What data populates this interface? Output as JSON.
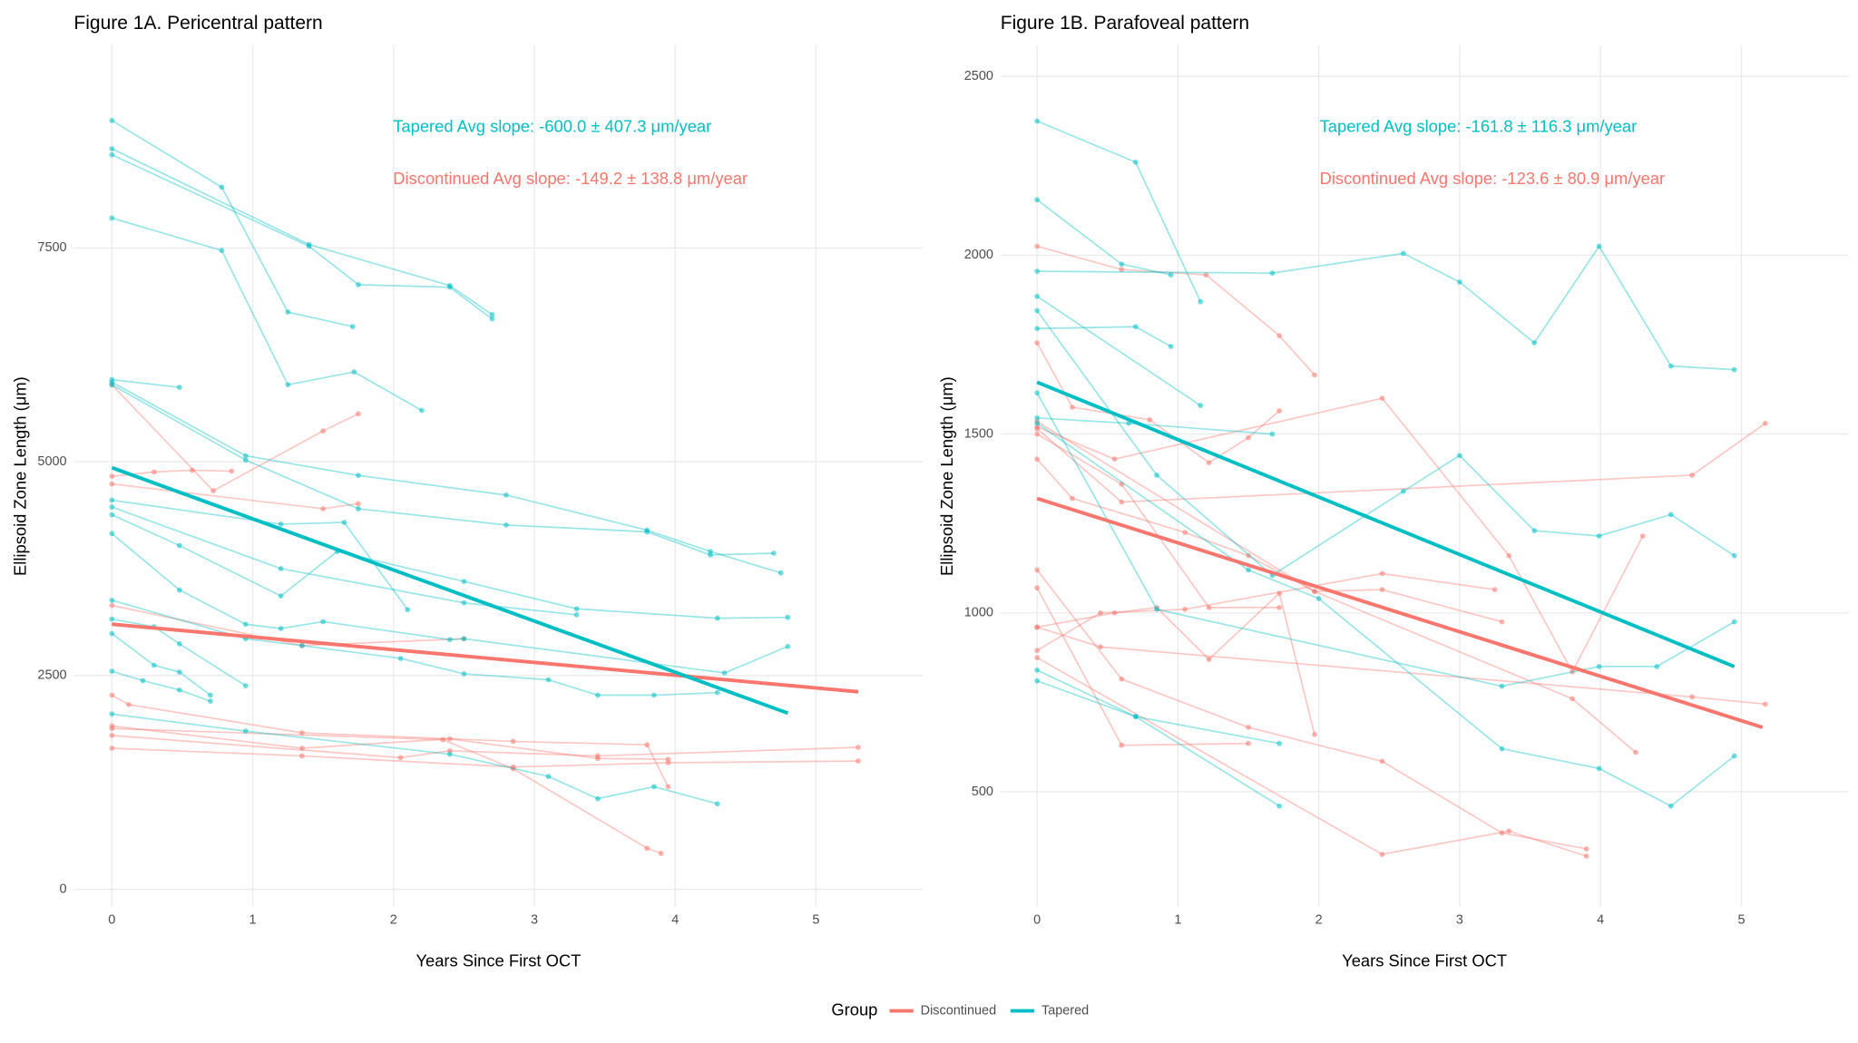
{
  "legend": {
    "title": "Group",
    "items": [
      {
        "name": "Discontinued",
        "color": "#F8766D"
      },
      {
        "name": "Tapered",
        "color": "#00BFC4"
      }
    ]
  },
  "chart_data": [
    {
      "type": "line",
      "title": "Figure 1A. Pericentral pattern",
      "xlabel": "Years Since First OCT",
      "ylabel": "Ellipsoid Zone Length (μm)",
      "xlim": [
        -0.27,
        5.76
      ],
      "ylim": [
        -210,
        9870
      ],
      "xticks": [
        0,
        1,
        2,
        3,
        4,
        5
      ],
      "yticks": [
        0,
        2500,
        5000,
        7500
      ],
      "series": [
        {
          "annotation": "Discontinued Avg slope: -149.2 ± 138.8 μm/year",
          "trend": {
            "x": [
              0,
              5.3
            ],
            "values": [
              3100,
              2310
            ]
          },
          "subjects": [
            {
              "x": [
                0,
                0.3,
                0.57,
                0.85
              ],
              "values": [
                4830,
                4880,
                4900,
                4890
              ]
            },
            {
              "x": [
                0,
                0.72,
                1.5,
                1.75
              ],
              "values": [
                5900,
                4660,
                5360,
                5560
              ]
            },
            {
              "x": [
                0,
                1.5,
                1.75
              ],
              "values": [
                4740,
                4450,
                4510
              ]
            },
            {
              "x": [
                0,
                1.35,
                2.5
              ],
              "values": [
                3320,
                2850,
                2930
              ]
            },
            {
              "x": [
                0,
                0.12,
                1.35,
                2.85,
                3.8,
                3.95
              ],
              "values": [
                2270,
                2160,
                1830,
                1730,
                1690,
                1200
              ]
            },
            {
              "x": [
                0,
                1.35,
                2.4,
                3.45,
                3.95
              ],
              "values": [
                1910,
                1650,
                1760,
                1530,
                1520
              ]
            },
            {
              "x": [
                0,
                2.35,
                2.85,
                3.8,
                3.9
              ],
              "values": [
                1880,
                1750,
                1410,
                480,
                420
              ]
            },
            {
              "x": [
                0,
                2.05,
                2.4,
                3.45,
                5.3
              ],
              "values": [
                1800,
                1540,
                1620,
                1560,
                1660
              ]
            },
            {
              "x": [
                0,
                1.35,
                2.85,
                3.95,
                5.3
              ],
              "values": [
                1650,
                1560,
                1430,
                1480,
                1500
              ]
            }
          ]
        },
        {
          "annotation": "Tapered Avg slope: -600.0 ± 407.3 μm/year",
          "trend": {
            "x": [
              0,
              4.8
            ],
            "values": [
              4930,
              2060
            ]
          },
          "subjects": [
            {
              "x": [
                0,
                0.78,
                1.25,
                1.71
              ],
              "values": [
                8990,
                8210,
                6750,
                6580
              ]
            },
            {
              "x": [
                0,
                1.4,
                2.4,
                2.7
              ],
              "values": [
                8660,
                7540,
                7060,
                6720
              ]
            },
            {
              "x": [
                0,
                1.4,
                1.75,
                2.4,
                2.7
              ],
              "values": [
                8590,
                7520,
                7070,
                7040,
                6670
              ]
            },
            {
              "x": [
                0,
                0.78,
                1.25,
                1.72,
                2.2
              ],
              "values": [
                7850,
                7470,
                5900,
                6050,
                5600
              ]
            },
            {
              "x": [
                0,
                0.48
              ],
              "values": [
                5960,
                5870
              ]
            },
            {
              "x": [
                0,
                0.95,
                1.75,
                2.8,
                3.8,
                4.25,
                4.75
              ],
              "values": [
                5930,
                5070,
                4840,
                4610,
                4200,
                3950,
                3700
              ]
            },
            {
              "x": [
                0,
                0.95,
                1.75,
                2.8,
                3.8,
                4.25,
                4.7
              ],
              "values": [
                5900,
                5020,
                4450,
                4260,
                4180,
                3910,
                3930
              ]
            },
            {
              "x": [
                0,
                1.2,
                1.65,
                2.1
              ],
              "values": [
                4550,
                4270,
                4290,
                3270
              ]
            },
            {
              "x": [
                0,
                0.48,
                1.2,
                1.6,
                2.5,
                3.3,
                4.3,
                4.8
              ],
              "values": [
                4380,
                4020,
                3430,
                3950,
                3600,
                3280,
                3170,
                3180
              ]
            },
            {
              "x": [
                0,
                1.2,
                2.5,
                3.3
              ],
              "values": [
                4470,
                3750,
                3350,
                3210
              ]
            },
            {
              "x": [
                0,
                0.48,
                0.95,
                1.2,
                1.5,
                2.4,
                2.5,
                4.35,
                4.8
              ],
              "values": [
                4160,
                3500,
                3100,
                3050,
                3130,
                2920,
                2930,
                2530,
                2840
              ]
            },
            {
              "x": [
                0,
                0.95,
                1.35,
                2.05,
                2.5,
                3.1,
                3.45,
                3.85,
                4.3
              ],
              "values": [
                3380,
                2930,
                2850,
                2700,
                2520,
                2450,
                2270,
                2270,
                2300
              ]
            },
            {
              "x": [
                0,
                0.3,
                0.48,
                0.95
              ],
              "values": [
                3160,
                3070,
                2870,
                2380
              ]
            },
            {
              "x": [
                0,
                0.3,
                0.48,
                0.7
              ],
              "values": [
                2990,
                2620,
                2540,
                2270
              ]
            },
            {
              "x": [
                0,
                0.22,
                0.48,
                0.7
              ],
              "values": [
                2550,
                2440,
                2330,
                2200
              ]
            },
            {
              "x": [
                0,
                0.95,
                2.4,
                3.1,
                3.45,
                3.85,
                4.3
              ],
              "values": [
                2050,
                1850,
                1580,
                1320,
                1060,
                1200,
                1000
              ]
            }
          ]
        }
      ]
    },
    {
      "type": "line",
      "title": "Figure 1B. Parafoveal pattern",
      "xlabel": "Years Since First OCT",
      "ylabel": "Ellipsoid Zone Length (μm)",
      "xlim": [
        -0.26,
        5.76
      ],
      "ylim": [
        177,
        2587
      ],
      "xticks": [
        0,
        1,
        2,
        3,
        4,
        5
      ],
      "yticks": [
        500,
        1000,
        1500,
        2000,
        2500
      ],
      "series": [
        {
          "annotation": "Discontinued Avg slope: -123.6 ± 80.9 μm/year",
          "trend": {
            "x": [
              0,
              5.15
            ],
            "values": [
              1320,
              680
            ]
          },
          "subjects": [
            {
              "x": [
                0,
                0.6,
                1.2,
                1.72,
                1.97
              ],
              "values": [
                2025,
                1960,
                1945,
                1775,
                1665
              ]
            },
            {
              "x": [
                0,
                0.25,
                0.8,
                1.22,
                1.5,
                1.72
              ],
              "values": [
                1755,
                1575,
                1540,
                1420,
                1490,
                1565
              ]
            },
            {
              "x": [
                0,
                0.55,
                2.45,
                3.35,
                3.8,
                4.3
              ],
              "values": [
                1520,
                1430,
                1600,
                1160,
                835,
                1215
              ]
            },
            {
              "x": [
                0,
                0.6,
                1.22,
                1.72
              ],
              "values": [
                1500,
                1360,
                1015,
                1015
              ]
            },
            {
              "x": [
                0,
                0.25,
                1.05,
                1.5,
                1.97,
                2.45,
                3.3
              ],
              "values": [
                1430,
                1320,
                1225,
                1160,
                1060,
                1065,
                975
              ]
            },
            {
              "x": [
                0,
                0.6,
                1.5,
                2.45,
                3.3,
                3.9
              ],
              "values": [
                1120,
                815,
                680,
                585,
                385,
                340
              ]
            },
            {
              "x": [
                0,
                0.6,
                1.5
              ],
              "values": [
                1070,
                630,
                635
              ]
            },
            {
              "x": [
                0,
                0.55,
                0.85,
                1.22,
                1.72,
                1.97
              ],
              "values": [
                960,
                1000,
                1015,
                870,
                1055,
                660
              ]
            },
            {
              "x": [
                0,
                0.45,
                1.05,
                2.45,
                3.25
              ],
              "values": [
                895,
                1000,
                1010,
                1110,
                1065
              ]
            },
            {
              "x": [
                0,
                2.45,
                3.35,
                3.9
              ],
              "values": [
                875,
                325,
                390,
                320
              ]
            },
            {
              "x": [
                0,
                0.6,
                4.65,
                5.17
              ],
              "values": [
                1515,
                1310,
                1385,
                1530
              ]
            },
            {
              "x": [
                0,
                1.97,
                3.8,
                4.25
              ],
              "values": [
                1535,
                1060,
                760,
                610
              ]
            },
            {
              "x": [
                0,
                0.45,
                4.65,
                5.17
              ],
              "values": [
                960,
                905,
                765,
                745
              ]
            }
          ]
        },
        {
          "annotation": "Tapered Avg slope: -161.8 ± 116.3 μm/year",
          "trend": {
            "x": [
              0,
              4.95
            ],
            "values": [
              1645,
              850
            ]
          },
          "subjects": [
            {
              "x": [
                0,
                0.7,
                1.16
              ],
              "values": [
                2375,
                2260,
                1870
              ]
            },
            {
              "x": [
                0,
                0.6,
                0.95
              ],
              "values": [
                2155,
                1975,
                1945
              ]
            },
            {
              "x": [
                0,
                1.67,
                2.6,
                3.0,
                3.53,
                3.99,
                4.5,
                4.95
              ],
              "values": [
                1955,
                1950,
                2005,
                1925,
                1755,
                2025,
                1690,
                1680
              ]
            },
            {
              "x": [
                0,
                0.7,
                0.95
              ],
              "values": [
                1795,
                1800,
                1745
              ]
            },
            {
              "x": [
                0,
                1.16
              ],
              "values": [
                1885,
                1580
              ]
            },
            {
              "x": [
                0,
                0.85,
                1.67,
                2.6,
                3.0,
                3.53,
                3.99,
                4.5,
                4.95
              ],
              "values": [
                1845,
                1385,
                1105,
                1340,
                1440,
                1230,
                1215,
                1275,
                1160
              ]
            },
            {
              "x": [
                0,
                0.65,
                1.67
              ],
              "values": [
                1545,
                1530,
                1500
              ]
            },
            {
              "x": [
                0,
                0.85,
                3.3,
                3.99,
                4.4,
                4.95
              ],
              "values": [
                1615,
                1010,
                795,
                850,
                850,
                975
              ]
            },
            {
              "x": [
                0,
                0.7,
                1.72
              ],
              "values": [
                840,
                710,
                460
              ]
            },
            {
              "x": [
                0,
                0.7,
                1.72
              ],
              "values": [
                810,
                710,
                635
              ]
            },
            {
              "x": [
                0,
                1.5,
                2.0,
                3.3,
                3.99,
                4.5,
                4.95
              ],
              "values": [
                1530,
                1120,
                1040,
                620,
                565,
                460,
                600
              ]
            }
          ]
        }
      ]
    }
  ]
}
